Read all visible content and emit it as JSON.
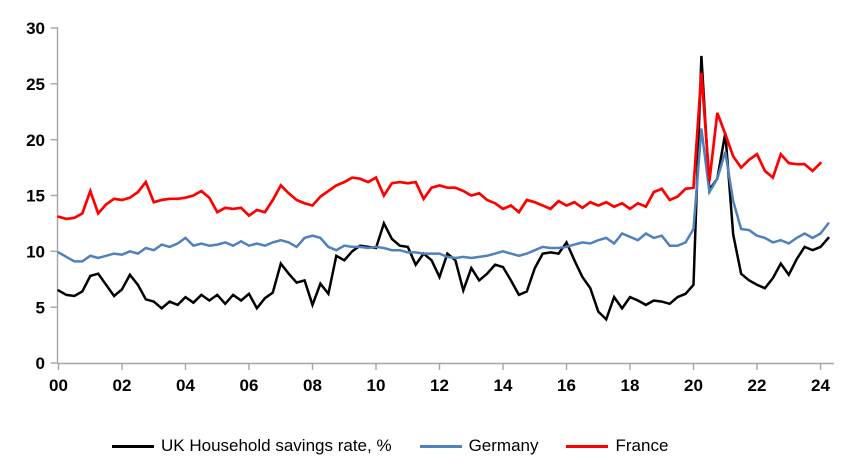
{
  "chart_data": {
    "type": "line",
    "title": "",
    "xlabel": "",
    "ylabel": "",
    "x_start": 2000,
    "x_step": 0.25,
    "x_unit": "quarterly",
    "xlim": [
      2000,
      2024.4
    ],
    "ylim": [
      0,
      30
    ],
    "grid": false,
    "legend_position": "bottom",
    "axis_color": "#A6A6A6",
    "y_ticks": [
      0,
      5,
      10,
      15,
      20,
      25,
      30
    ],
    "y_tick_labels": [
      "0",
      "5",
      "10",
      "15",
      "20",
      "25",
      "30"
    ],
    "x_tick_years": [
      2000,
      2002,
      2004,
      2006,
      2008,
      2010,
      2012,
      2014,
      2016,
      2018,
      2020,
      2022,
      2024
    ],
    "x_tick_labels": [
      "00",
      "02",
      "04",
      "06",
      "08",
      "10",
      "12",
      "14",
      "16",
      "18",
      "20",
      "22",
      "24"
    ],
    "series": [
      {
        "name": "UK Household savings rate, %",
        "color": "#000000",
        "values": [
          6.5,
          6.1,
          6.0,
          6.4,
          7.8,
          8.0,
          7.0,
          6.0,
          6.6,
          7.9,
          7.0,
          5.7,
          5.5,
          4.9,
          5.5,
          5.2,
          5.9,
          5.4,
          6.1,
          5.6,
          6.1,
          5.3,
          6.1,
          5.6,
          6.2,
          4.9,
          5.8,
          6.3,
          8.9,
          8.0,
          7.2,
          7.4,
          5.2,
          7.1,
          6.2,
          9.6,
          9.2,
          10.0,
          10.5,
          10.4,
          10.3,
          12.5,
          11.1,
          10.5,
          10.4,
          8.8,
          9.8,
          9.2,
          7.7,
          9.8,
          9.2,
          6.5,
          8.5,
          7.4,
          8.0,
          8.8,
          8.6,
          7.4,
          6.1,
          6.4,
          8.5,
          9.8,
          9.9,
          9.8,
          10.8,
          9.2,
          7.7,
          6.7,
          4.6,
          3.9,
          5.9,
          4.9,
          5.9,
          5.6,
          5.2,
          5.6,
          5.5,
          5.3,
          5.9,
          6.2,
          7.0,
          27.5,
          15.5,
          16.5,
          20.6,
          11.5,
          8.0,
          7.4,
          7.0,
          6.7,
          7.6,
          8.9,
          7.9,
          9.3,
          10.4,
          10.1,
          10.4,
          11.2
        ]
      },
      {
        "name": "Germany",
        "color": "#4F81BD",
        "values": [
          9.9,
          9.5,
          9.1,
          9.1,
          9.6,
          9.4,
          9.6,
          9.8,
          9.7,
          10.0,
          9.8,
          10.3,
          10.1,
          10.6,
          10.4,
          10.7,
          11.2,
          10.5,
          10.7,
          10.5,
          10.6,
          10.8,
          10.5,
          10.9,
          10.5,
          10.7,
          10.5,
          10.8,
          11.0,
          10.8,
          10.4,
          11.2,
          11.4,
          11.2,
          10.4,
          10.1,
          10.5,
          10.4,
          10.4,
          10.3,
          10.4,
          10.3,
          10.1,
          10.1,
          9.9,
          9.9,
          9.8,
          9.8,
          9.8,
          9.5,
          9.4,
          9.5,
          9.4,
          9.5,
          9.6,
          9.8,
          10.0,
          9.8,
          9.6,
          9.8,
          10.1,
          10.4,
          10.3,
          10.3,
          10.4,
          10.6,
          10.8,
          10.7,
          11.0,
          11.2,
          10.7,
          11.6,
          11.3,
          11.0,
          11.6,
          11.2,
          11.4,
          10.5,
          10.5,
          10.8,
          12.0,
          21.0,
          15.3,
          16.5,
          18.9,
          14.5,
          12.0,
          11.9,
          11.4,
          11.2,
          10.8,
          11.0,
          10.7,
          11.2,
          11.6,
          11.2,
          11.6,
          12.5
        ]
      },
      {
        "name": "France",
        "color": "#FF0000",
        "values": [
          13.1,
          12.9,
          13.0,
          13.4,
          15.4,
          13.4,
          14.2,
          14.7,
          14.6,
          14.8,
          15.3,
          16.2,
          14.4,
          14.6,
          14.7,
          14.7,
          14.8,
          15.0,
          15.4,
          14.8,
          13.5,
          13.9,
          13.8,
          13.9,
          13.2,
          13.7,
          13.5,
          14.6,
          15.9,
          15.2,
          14.6,
          14.3,
          14.1,
          14.9,
          15.4,
          15.9,
          16.2,
          16.6,
          16.5,
          16.2,
          16.6,
          15.0,
          16.1,
          16.2,
          16.1,
          16.2,
          14.7,
          15.7,
          15.9,
          15.7,
          15.7,
          15.4,
          15.0,
          15.2,
          14.6,
          14.3,
          13.8,
          14.1,
          13.5,
          14.6,
          14.4,
          14.1,
          13.8,
          14.5,
          14.1,
          14.4,
          13.9,
          14.4,
          14.1,
          14.4,
          14.0,
          14.3,
          13.8,
          14.3,
          14.0,
          15.3,
          15.6,
          14.6,
          14.9,
          15.6,
          15.7,
          26.0,
          16.3,
          22.4,
          20.5,
          18.5,
          17.5,
          18.2,
          18.7,
          17.2,
          16.6,
          18.7,
          17.9,
          17.8,
          17.8,
          17.2,
          17.9,
          null
        ]
      }
    ]
  },
  "legend": {
    "uk_label": "UK Household savings rate, %",
    "germany_label": "Germany",
    "france_label": "France"
  }
}
